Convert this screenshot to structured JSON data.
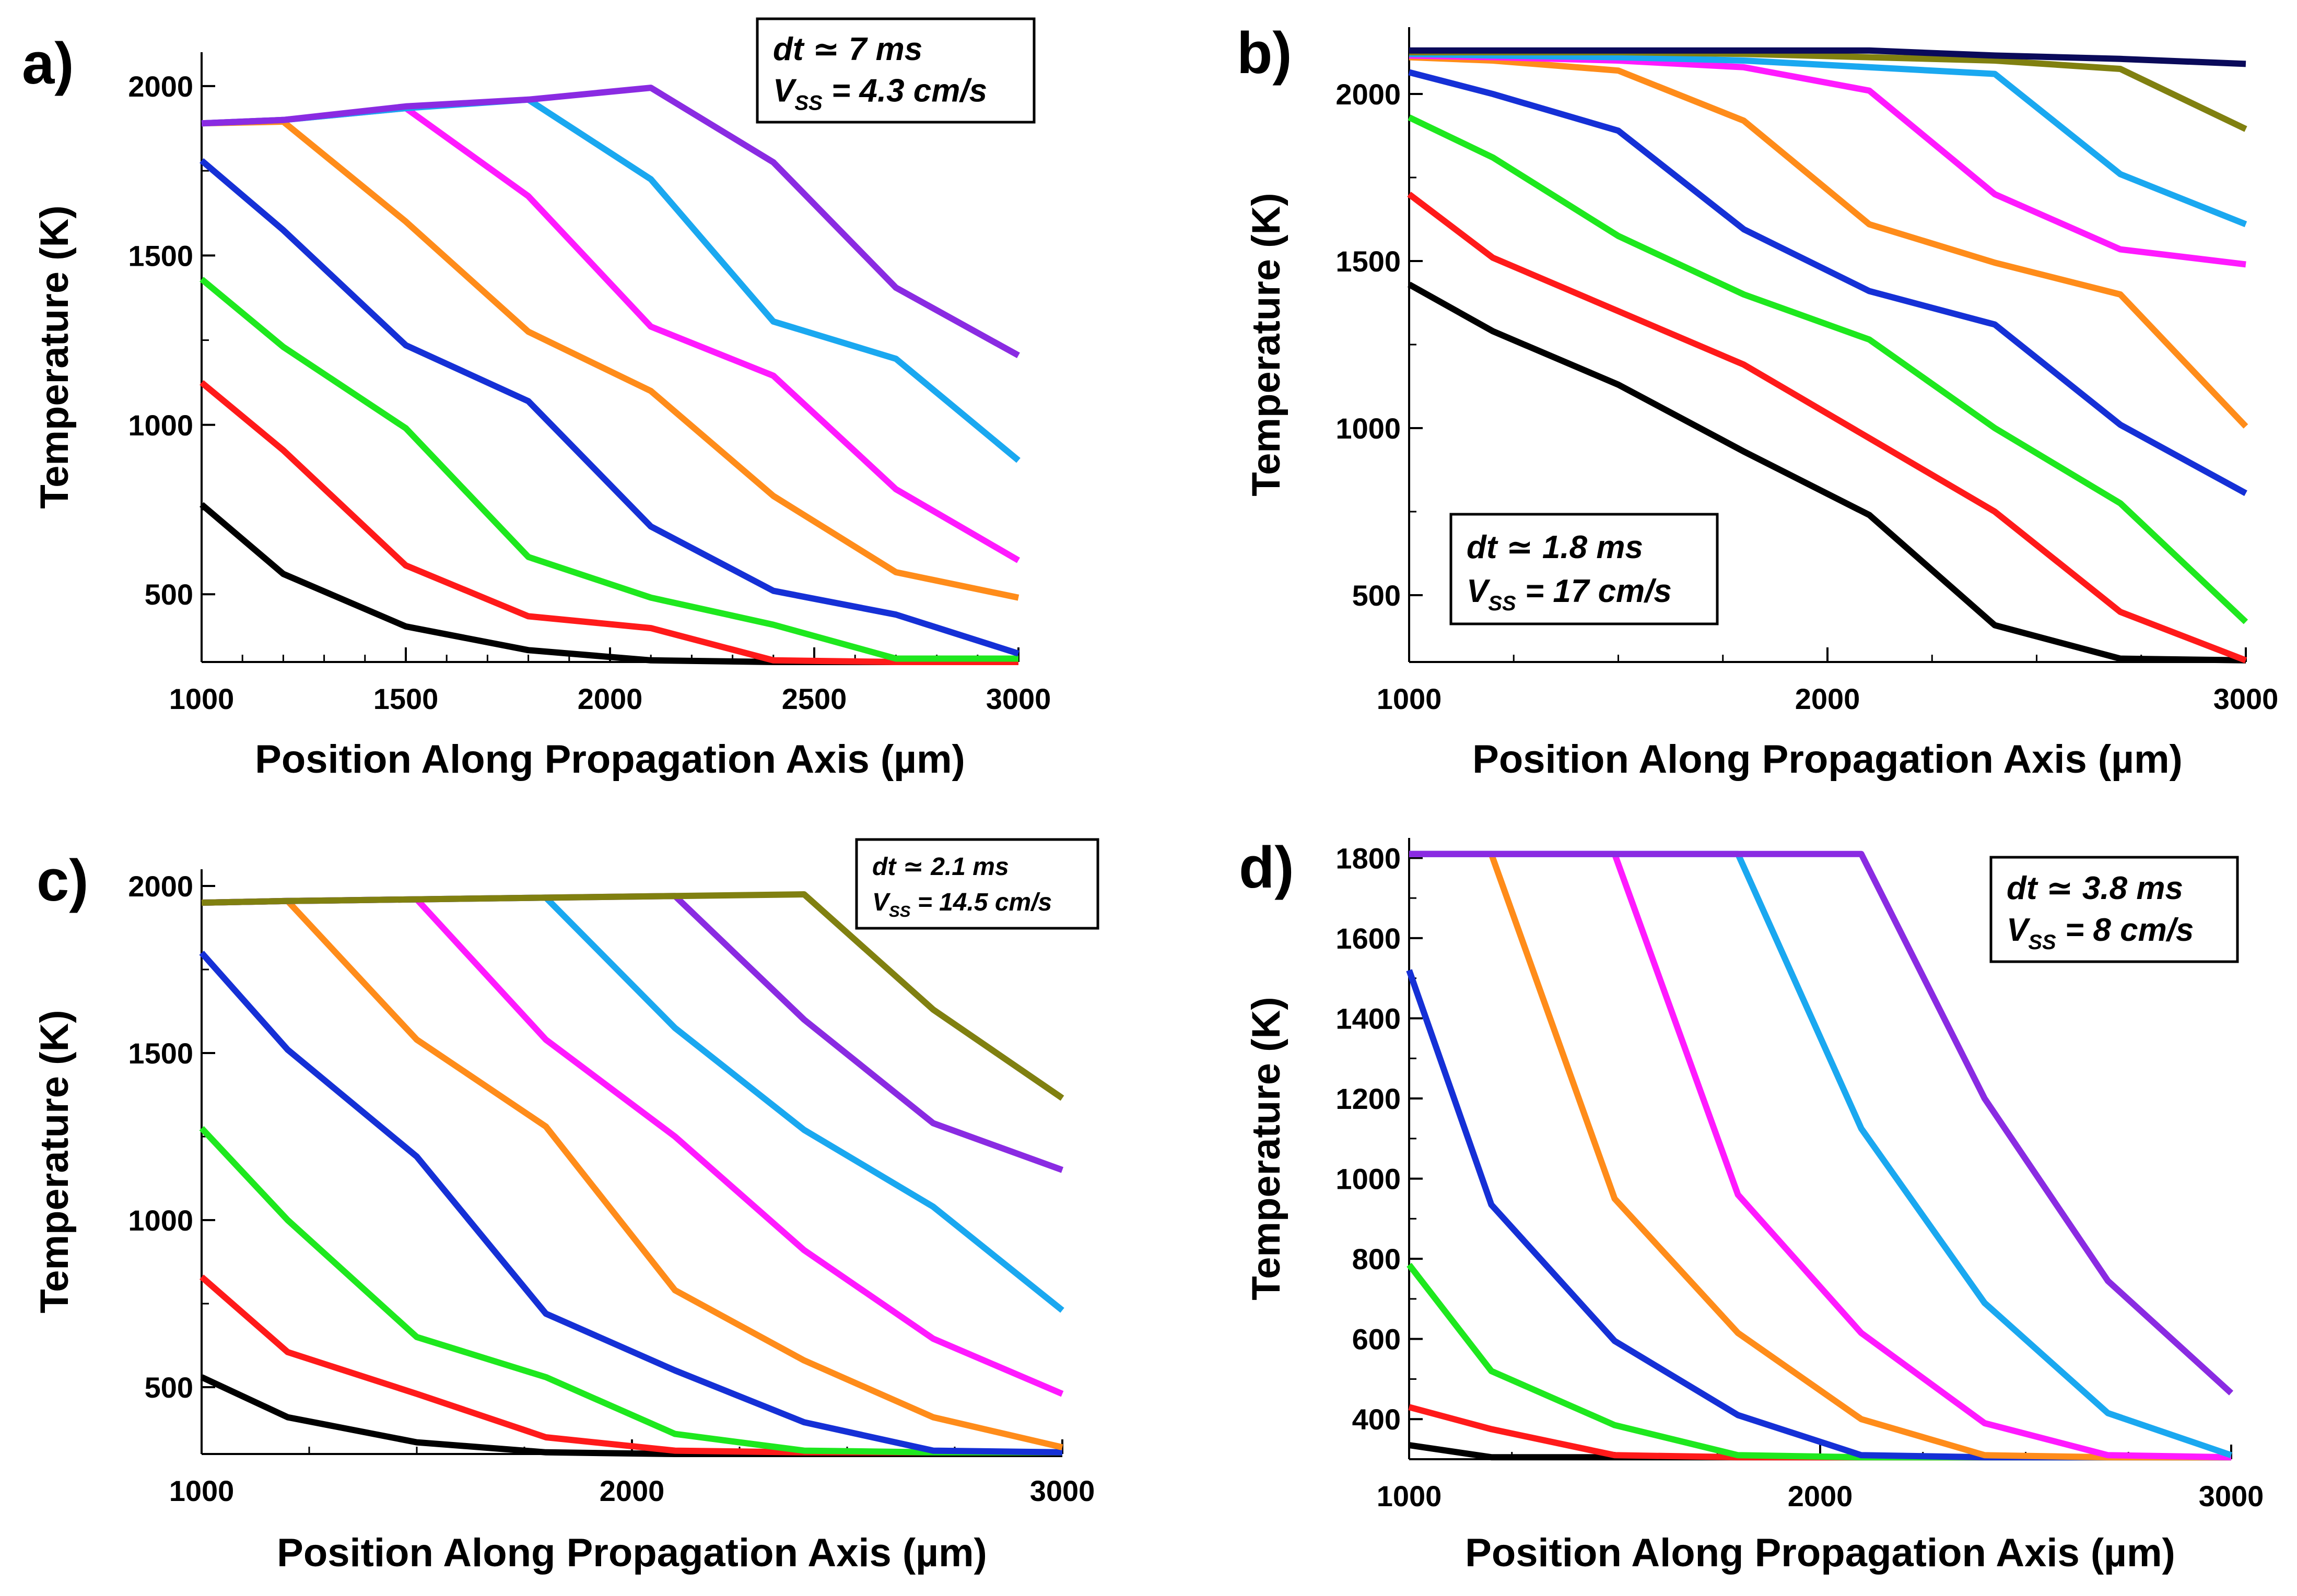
{
  "figure": {
    "panels": [
      {
        "label": "a)",
        "annotation": {
          "dt": "dt ≃ 7 ms",
          "vss_label": "V",
          "vss_sub": "SS",
          "vss_value": " = 4.3 cm/s"
        }
      },
      {
        "label": "b)",
        "annotation": {
          "dt": "dt ≃ 1.8 ms",
          "vss_label": "V",
          "vss_sub": "SS",
          "vss_value": " = 17 cm/s"
        }
      },
      {
        "label": "c)",
        "annotation": {
          "dt": "dt ≃ 2.1 ms",
          "vss_label": "V",
          "vss_sub": "SS",
          "vss_value": " = 14.5 cm/s"
        }
      },
      {
        "label": "d)",
        "annotation": {
          "dt": "dt ≃ 3.8 ms",
          "vss_label": "V",
          "vss_sub": "SS",
          "vss_value": " = 8 cm/s"
        }
      }
    ]
  },
  "colors": {
    "black": "#000000",
    "red": "#ff1a1a",
    "green": "#1ee81e",
    "blue": "#1530d6",
    "orange": "#ff8c1a",
    "magenta": "#ff1aff",
    "sky": "#1aa8f0",
    "purple": "#8a2be2",
    "olive": "#808010",
    "navy": "#0a0a5a"
  },
  "chart_data": [
    {
      "type": "line",
      "panel": "a)",
      "xlabel": "Position Along Propagation Axis (µm)",
      "ylabel": "Temperature (K)",
      "xlim": [
        1000,
        3000
      ],
      "ylim": [
        300,
        2100
      ],
      "xticks": [
        1000,
        1500,
        2000,
        2500,
        3000
      ],
      "xtick_labels": [
        "1000",
        "1500",
        "2000",
        "2500",
        "3000"
      ],
      "yticks": [
        500,
        1000,
        1500,
        2000
      ],
      "ytick_labels": [
        "500",
        "1000",
        "1500",
        "2000"
      ],
      "x": [
        1000,
        1200,
        1500,
        1800,
        2100,
        2400,
        2700,
        3000
      ],
      "series": [
        {
          "name": "black",
          "color": "#000000",
          "values": [
            765,
            560,
            405,
            335,
            305,
            300,
            300,
            300
          ]
        },
        {
          "name": "red",
          "color": "#ff1a1a",
          "values": [
            1125,
            925,
            585,
            435,
            400,
            305,
            300,
            300
          ]
        },
        {
          "name": "green",
          "color": "#1ee81e",
          "values": [
            1430,
            1230,
            990,
            610,
            490,
            410,
            310,
            310
          ]
        },
        {
          "name": "blue",
          "color": "#1530d6",
          "values": [
            1780,
            1575,
            1235,
            1070,
            700,
            510,
            440,
            325
          ]
        },
        {
          "name": "orange",
          "color": "#ff8c1a",
          "values": [
            1890,
            1895,
            1600,
            1275,
            1100,
            790,
            565,
            490
          ]
        },
        {
          "name": "magenta",
          "color": "#ff1aff",
          "values": [
            1890,
            1900,
            1935,
            1675,
            1290,
            1145,
            810,
            600
          ]
        },
        {
          "name": "sky",
          "color": "#1aa8f0",
          "values": [
            1890,
            1900,
            1935,
            1960,
            1725,
            1305,
            1195,
            895
          ]
        },
        {
          "name": "purple",
          "color": "#8a2be2",
          "values": [
            1890,
            1900,
            1940,
            1960,
            1995,
            1775,
            1405,
            1205
          ]
        }
      ]
    },
    {
      "type": "line",
      "panel": "b)",
      "xlabel": "Position Along Propagation Axis (µm)",
      "ylabel": "Temperature (K)",
      "xlim": [
        1000,
        3000
      ],
      "ylim": [
        300,
        2200
      ],
      "xticks": [
        1000,
        2000,
        3000
      ],
      "xtick_labels": [
        "1000",
        "2000",
        "3000"
      ],
      "yticks": [
        500,
        1000,
        1500,
        2000
      ],
      "ytick_labels": [
        "500",
        "1000",
        "1500",
        "2000"
      ],
      "x": [
        1000,
        1200,
        1500,
        1800,
        2100,
        2400,
        2700,
        3000
      ],
      "series": [
        {
          "name": "black",
          "color": "#000000",
          "values": [
            1430,
            1290,
            1130,
            930,
            740,
            410,
            310,
            305
          ]
        },
        {
          "name": "red",
          "color": "#ff1a1a",
          "values": [
            1700,
            1510,
            1350,
            1190,
            970,
            750,
            450,
            305
          ]
        },
        {
          "name": "green",
          "color": "#1ee81e",
          "values": [
            1930,
            1810,
            1575,
            1400,
            1265,
            1000,
            775,
            420
          ]
        },
        {
          "name": "blue",
          "color": "#1530d6",
          "values": [
            2065,
            2000,
            1890,
            1595,
            1410,
            1310,
            1010,
            805
          ]
        },
        {
          "name": "orange",
          "color": "#ff8c1a",
          "values": [
            2110,
            2100,
            2070,
            1920,
            1610,
            1495,
            1400,
            1005
          ]
        },
        {
          "name": "magenta",
          "color": "#ff1aff",
          "values": [
            2115,
            2110,
            2100,
            2080,
            2010,
            1700,
            1535,
            1490
          ]
        },
        {
          "name": "sky",
          "color": "#1aa8f0",
          "values": [
            2120,
            2115,
            2110,
            2100,
            2080,
            2060,
            1760,
            1610
          ]
        },
        {
          "name": "olive",
          "color": "#808010",
          "values": [
            2125,
            2125,
            2125,
            2120,
            2110,
            2100,
            2075,
            1895
          ]
        },
        {
          "name": "navy",
          "color": "#0a0a5a",
          "values": [
            2130,
            2130,
            2130,
            2130,
            2130,
            2115,
            2105,
            2090
          ]
        }
      ]
    },
    {
      "type": "line",
      "panel": "c)",
      "xlabel": "Position Along Propagation Axis (µm)",
      "ylabel": "Temperature (K)",
      "xlim": [
        1000,
        3000
      ],
      "ylim": [
        300,
        2050
      ],
      "xticks": [
        1000,
        2000,
        3000
      ],
      "xtick_labels": [
        "1000",
        "2000",
        "3000"
      ],
      "yticks": [
        500,
        1000,
        1500,
        2000
      ],
      "ytick_labels": [
        "500",
        "1000",
        "1500",
        "2000"
      ],
      "x": [
        1000,
        1200,
        1500,
        1800,
        2100,
        2400,
        2700,
        3000
      ],
      "series": [
        {
          "name": "black",
          "color": "#000000",
          "values": [
            530,
            410,
            335,
            305,
            300,
            300,
            300,
            300
          ]
        },
        {
          "name": "red",
          "color": "#ff1a1a",
          "values": [
            830,
            605,
            480,
            350,
            310,
            305,
            305,
            305
          ]
        },
        {
          "name": "green",
          "color": "#1ee81e",
          "values": [
            1275,
            1000,
            650,
            530,
            360,
            310,
            305,
            305
          ]
        },
        {
          "name": "blue",
          "color": "#1530d6",
          "values": [
            1800,
            1510,
            1190,
            720,
            550,
            395,
            310,
            305
          ]
        },
        {
          "name": "orange",
          "color": "#ff8c1a",
          "values": [
            1950,
            1955,
            1540,
            1280,
            790,
            580,
            410,
            320
          ]
        },
        {
          "name": "magenta",
          "color": "#ff1aff",
          "values": [
            1950,
            1955,
            1960,
            1540,
            1250,
            910,
            645,
            480
          ]
        },
        {
          "name": "sky",
          "color": "#1aa8f0",
          "values": [
            1950,
            1955,
            1960,
            1965,
            1575,
            1270,
            1040,
            730
          ]
        },
        {
          "name": "purple",
          "color": "#8a2be2",
          "values": [
            1950,
            1955,
            1960,
            1965,
            1970,
            1600,
            1290,
            1150
          ]
        },
        {
          "name": "olive",
          "color": "#808010",
          "values": [
            1950,
            1955,
            1960,
            1965,
            1970,
            1975,
            1630,
            1365
          ]
        }
      ]
    },
    {
      "type": "line",
      "panel": "d)",
      "xlabel": "Position Along Propagation Axis (µm)",
      "ylabel": "Temperature (K)",
      "xlim": [
        1000,
        3000
      ],
      "ylim": [
        300,
        1850
      ],
      "xticks": [
        1000,
        2000,
        3000
      ],
      "xtick_labels": [
        "1000",
        "2000",
        "3000"
      ],
      "yticks": [
        400,
        600,
        800,
        1000,
        1200,
        1400,
        1600,
        1800
      ],
      "ytick_labels": [
        "400",
        "600",
        "800",
        "1000",
        "1200",
        "1400",
        "1600",
        "1800"
      ],
      "x": [
        1000,
        1200,
        1500,
        1800,
        2100,
        2400,
        2700,
        3000
      ],
      "series": [
        {
          "name": "black",
          "color": "#000000",
          "values": [
            335,
            305,
            305,
            305,
            305,
            305,
            305,
            305
          ]
        },
        {
          "name": "red",
          "color": "#ff1a1a",
          "values": [
            430,
            375,
            310,
            305,
            305,
            305,
            305,
            305
          ]
        },
        {
          "name": "green",
          "color": "#1ee81e",
          "values": [
            785,
            520,
            385,
            310,
            305,
            305,
            305,
            305
          ]
        },
        {
          "name": "blue",
          "color": "#1530d6",
          "values": [
            1520,
            935,
            595,
            410,
            310,
            305,
            305,
            305
          ]
        },
        {
          "name": "orange",
          "color": "#ff8c1a",
          "values": [
            1810,
            1810,
            950,
            615,
            400,
            310,
            305,
            305
          ]
        },
        {
          "name": "magenta",
          "color": "#ff1aff",
          "values": [
            1810,
            1810,
            1810,
            960,
            615,
            390,
            310,
            305
          ]
        },
        {
          "name": "sky",
          "color": "#1aa8f0",
          "values": [
            1810,
            1810,
            1810,
            1810,
            1125,
            690,
            415,
            310
          ]
        },
        {
          "name": "purple",
          "color": "#8a2be2",
          "values": [
            1810,
            1810,
            1810,
            1810,
            1810,
            1200,
            745,
            465
          ]
        }
      ]
    }
  ]
}
